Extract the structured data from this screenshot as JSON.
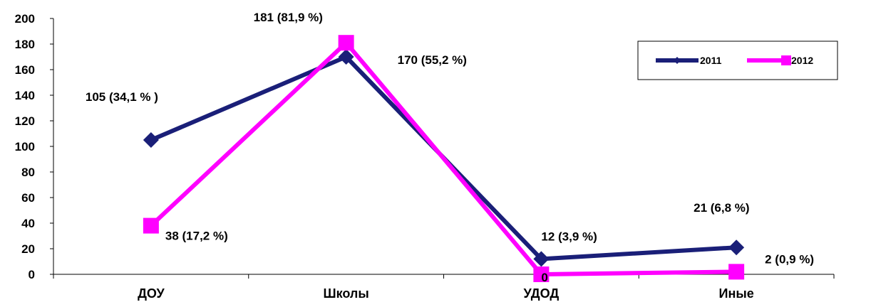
{
  "chart_data": {
    "type": "line",
    "categories": [
      "ДОУ",
      "Школы",
      "УДОД",
      "Иные"
    ],
    "ylim": [
      0,
      200
    ],
    "yticks": [
      0,
      20,
      40,
      60,
      80,
      100,
      120,
      140,
      160,
      180,
      200
    ],
    "grid": false,
    "legend_position": "top-right",
    "series": [
      {
        "name": "2011",
        "color": "#1a1f78",
        "marker": "diamond",
        "values": [
          105,
          170,
          12,
          21
        ],
        "labels": [
          "105 (34,1 % )",
          "170 (55,2 %)",
          "12 (3,9 %)",
          "21 (6,8 %)"
        ]
      },
      {
        "name": "2012",
        "color": "#ff00ff",
        "marker": "square",
        "values": [
          38,
          181,
          0,
          2
        ],
        "labels": [
          "38 (17,2 %)",
          "181 (81,9 %)",
          "0",
          "2 (0,9 %)"
        ]
      }
    ]
  }
}
